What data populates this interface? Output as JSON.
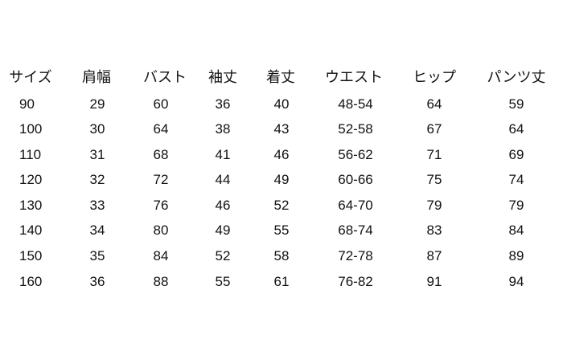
{
  "table": {
    "headers": [
      "サイズ",
      "肩幅",
      "バスト",
      "袖丈",
      "着丈",
      "ウエスト",
      "ヒップ",
      "パンツ丈"
    ],
    "rows": [
      [
        "90",
        "29",
        "60",
        "36",
        "40",
        "48-54",
        "64",
        "59"
      ],
      [
        "100",
        "30",
        "64",
        "38",
        "43",
        "52-58",
        "67",
        "64"
      ],
      [
        "110",
        "31",
        "68",
        "41",
        "46",
        "56-62",
        "71",
        "69"
      ],
      [
        "120",
        "32",
        "72",
        "44",
        "49",
        "60-66",
        "75",
        "74"
      ],
      [
        "130",
        "33",
        "76",
        "46",
        "52",
        "64-70",
        "79",
        "79"
      ],
      [
        "140",
        "34",
        "80",
        "49",
        "55",
        "68-74",
        "83",
        "84"
      ],
      [
        "150",
        "35",
        "84",
        "52",
        "58",
        "72-78",
        "87",
        "89"
      ],
      [
        "160",
        "36",
        "88",
        "55",
        "61",
        "76-82",
        "91",
        "94"
      ]
    ]
  }
}
